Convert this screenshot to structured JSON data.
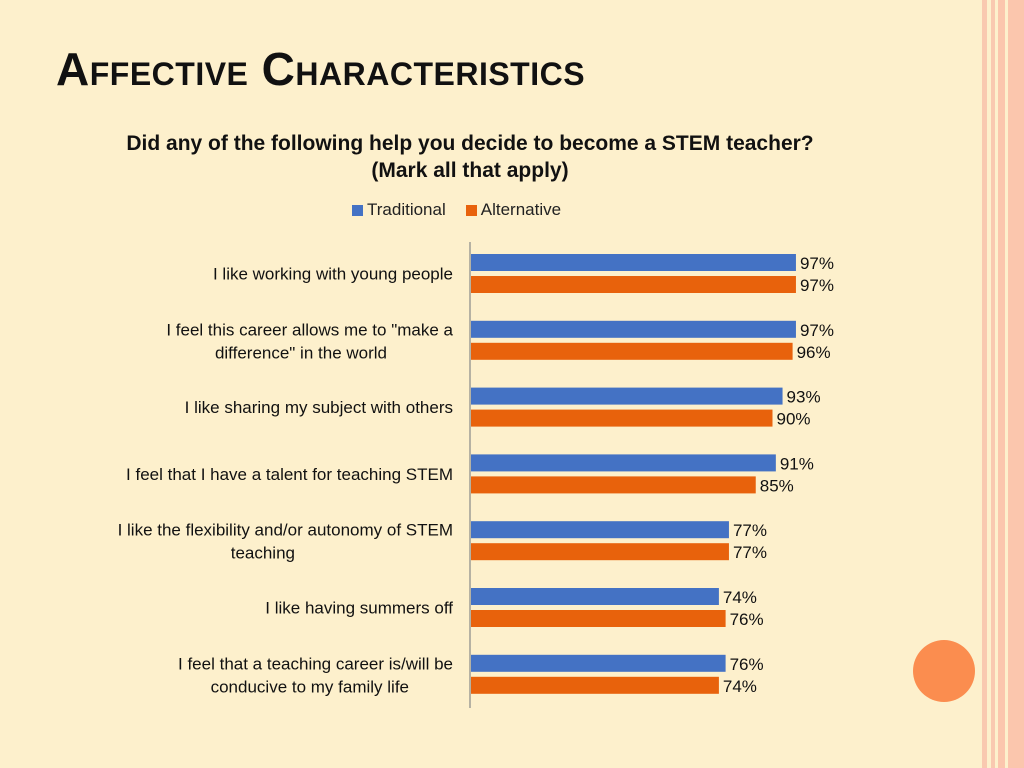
{
  "slide": {
    "title": "Affective Characteristics"
  },
  "colors": {
    "traditional": "#4472c4",
    "alternative": "#e8620c",
    "background": "#fdf0cc",
    "accent_circle": "#fb8d4f"
  },
  "chart_data": {
    "type": "bar",
    "orientation": "horizontal",
    "title": "Did any of the following help you decide to become a STEM teacher? (Mark all that apply)",
    "legend_position": "top",
    "categories": [
      "I like working with young people",
      "I feel this career allows me to \"make a difference\" in the world",
      "I like sharing my subject with others",
      "I feel that I have a talent for teaching STEM",
      "I like the flexibility and/or autonomy of STEM teaching",
      "I like having summers off",
      "I feel that a teaching career is/will be conducive to my family life"
    ],
    "series": [
      {
        "name": "Traditional",
        "values": [
          97,
          97,
          93,
          91,
          77,
          74,
          76
        ]
      },
      {
        "name": "Alternative",
        "values": [
          97,
          96,
          90,
          85,
          77,
          76,
          74
        ]
      }
    ],
    "value_labels": [
      [
        "97%",
        "97%",
        "93%",
        "91%",
        "77%",
        "74%",
        "76%"
      ],
      [
        "97%",
        "96%",
        "90%",
        "85%",
        "77%",
        "76%",
        "74%"
      ]
    ],
    "xlim": [
      0,
      100
    ],
    "grid": false
  }
}
